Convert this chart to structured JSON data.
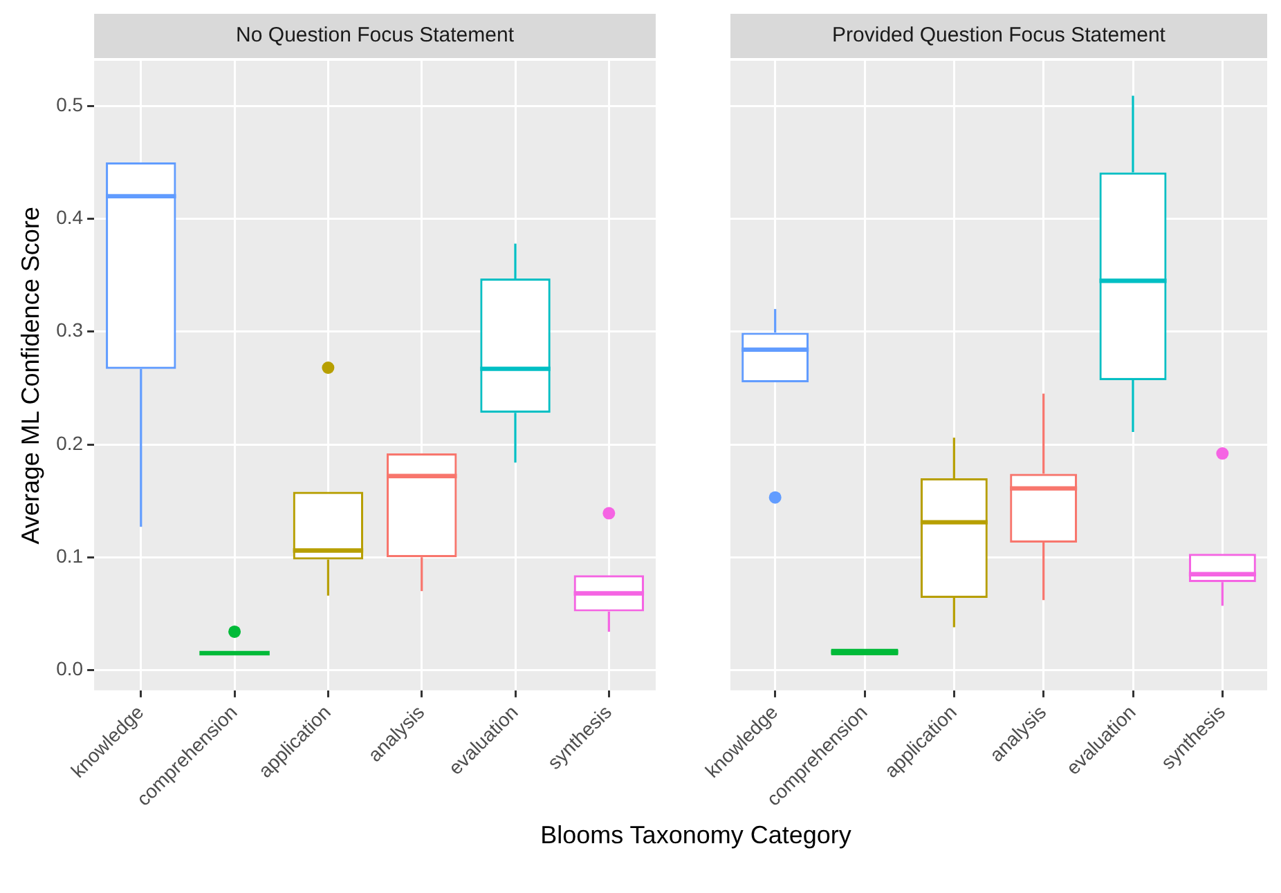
{
  "chart_data": [
    {
      "type": "box",
      "title": "No Question Focus Statement",
      "ylabel": "Average ML Confidence Score",
      "xlabel": "Blooms Taxonomy Category",
      "categories": [
        "knowledge",
        "comprehension",
        "application",
        "analysis",
        "evaluation",
        "synthesis"
      ],
      "colors": [
        "#619cff",
        "#00ba38",
        "#b79f00",
        "#f8766d",
        "#00bfc4",
        "#f564e3"
      ],
      "boxes": [
        {
          "low": 0.127,
          "q1": 0.267,
          "median": 0.42,
          "q3": 0.45,
          "high": 0.45
        },
        {
          "low": 0.015,
          "q1": 0.015,
          "median": 0.015,
          "q3": 0.015,
          "high": 0.015,
          "outliers": [
            0.034
          ]
        },
        {
          "low": 0.066,
          "q1": 0.098,
          "median": 0.106,
          "q3": 0.158,
          "high": 0.158,
          "outliers": [
            0.268
          ]
        },
        {
          "low": 0.07,
          "q1": 0.1,
          "median": 0.172,
          "q3": 0.192,
          "high": 0.192
        },
        {
          "low": 0.184,
          "q1": 0.228,
          "median": 0.267,
          "q3": 0.347,
          "high": 0.378
        },
        {
          "low": 0.034,
          "q1": 0.052,
          "median": 0.068,
          "q3": 0.084,
          "high": 0.084,
          "outliers": [
            0.139
          ]
        }
      ],
      "ylim": [
        -0.018,
        0.54
      ],
      "yticks": [
        {
          "value": 0,
          "label": "0.0"
        },
        0.1,
        0.2,
        0.3,
        0.4,
        0.5
      ],
      "grid": true,
      "legend": false
    },
    {
      "type": "box",
      "title": "Provided Question Focus Statement",
      "categories": [
        "knowledge",
        "comprehension",
        "application",
        "analysis",
        "evaluation",
        "synthesis"
      ],
      "colors": [
        "#619cff",
        "#00ba38",
        "#b79f00",
        "#f8766d",
        "#00bfc4",
        "#f564e3"
      ],
      "boxes": [
        {
          "low": 0.255,
          "q1": 0.255,
          "median": 0.284,
          "q3": 0.299,
          "high": 0.32,
          "outliers": [
            0.153
          ]
        },
        {
          "low": 0.013,
          "q1": 0.013,
          "median": 0.016,
          "q3": 0.019,
          "high": 0.019
        },
        {
          "low": 0.038,
          "q1": 0.064,
          "median": 0.131,
          "q3": 0.17,
          "high": 0.206
        },
        {
          "low": 0.062,
          "q1": 0.113,
          "median": 0.161,
          "q3": 0.174,
          "high": 0.245
        },
        {
          "low": 0.211,
          "q1": 0.257,
          "median": 0.345,
          "q3": 0.441,
          "high": 0.509
        },
        {
          "low": 0.057,
          "q1": 0.078,
          "median": 0.085,
          "q3": 0.103,
          "high": 0.103,
          "outliers": [
            0.192
          ]
        }
      ],
      "ylim": [
        -0.018,
        0.54
      ],
      "yticks": [
        0,
        0.1,
        0.2,
        0.3,
        0.4,
        0.5
      ],
      "grid": true,
      "legend": false,
      "tick_labels": "x"
    }
  ]
}
